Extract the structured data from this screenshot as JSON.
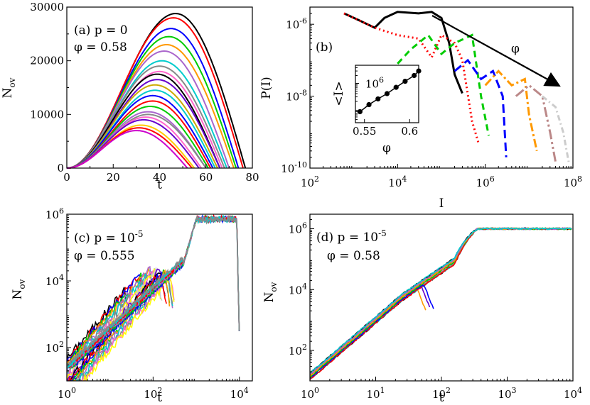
{
  "chart_data": [
    {
      "id": "a",
      "type": "line",
      "annotation": {
        "line1": "(a) p = 0",
        "line2": "φ = 0.58"
      },
      "xlabel": "t",
      "ylabel": {
        "main": "N",
        "sub": "ov"
      },
      "xlim": [
        0,
        80
      ],
      "ylim": [
        0,
        30000
      ],
      "xticks": [
        0,
        20,
        40,
        60,
        80
      ],
      "yticks": [
        0,
        10000,
        20000,
        30000
      ],
      "series": [
        {
          "color": "#000000",
          "peak_t": 47,
          "peak": 28800,
          "end": 77
        },
        {
          "color": "#ff0000",
          "peak_t": 46,
          "peak": 28000,
          "end": 76
        },
        {
          "color": "#0000ff",
          "peak_t": 45,
          "peak": 26000,
          "end": 74
        },
        {
          "color": "#00cc00",
          "peak_t": 44,
          "peak": 24500,
          "end": 73
        },
        {
          "color": "#ff9900",
          "peak_t": 43,
          "peak": 23000,
          "end": 72
        },
        {
          "color": "#aa66cc",
          "peak_t": 42,
          "peak": 21800,
          "end": 70
        },
        {
          "color": "#00cccc",
          "peak_t": 41,
          "peak": 20000,
          "end": 69
        },
        {
          "color": "#888888",
          "peak_t": 40,
          "peak": 19000,
          "end": 68
        },
        {
          "color": "#ff66cc",
          "peak_t": 40,
          "peak": 18000,
          "end": 67
        },
        {
          "color": "#000000",
          "peak_t": 39,
          "peak": 17500,
          "end": 66
        },
        {
          "color": "#6600cc",
          "peak_t": 39,
          "peak": 16500,
          "end": 66
        },
        {
          "color": "#ccaa00",
          "peak_t": 38,
          "peak": 15500,
          "end": 65
        },
        {
          "color": "#00cccc",
          "peak_t": 38,
          "peak": 14500,
          "end": 64
        },
        {
          "color": "#0000ff",
          "peak_t": 37,
          "peak": 13500,
          "end": 63
        },
        {
          "color": "#ff0000",
          "peak_t": 37,
          "peak": 12500,
          "end": 62
        },
        {
          "color": "#00cc00",
          "peak_t": 36,
          "peak": 11500,
          "end": 61
        },
        {
          "color": "#aa66cc",
          "peak_t": 35,
          "peak": 10500,
          "end": 60
        },
        {
          "color": "#888888",
          "peak_t": 35,
          "peak": 10000,
          "end": 60
        },
        {
          "color": "#ff66cc",
          "peak_t": 34,
          "peak": 9500,
          "end": 58
        },
        {
          "color": "#6600cc",
          "peak_t": 33,
          "peak": 9000,
          "end": 57
        },
        {
          "color": "#ffcc00",
          "peak_t": 32,
          "peak": 8000,
          "end": 55
        },
        {
          "color": "#ff0000",
          "peak_t": 31,
          "peak": 7500,
          "end": 54
        },
        {
          "color": "#cc00cc",
          "peak_t": 30,
          "peak": 7000,
          "end": 52
        }
      ]
    },
    {
      "id": "b",
      "type": "line",
      "annotation": {
        "line1": "(b)"
      },
      "arrow_label": "φ",
      "xlabel": "I",
      "ylabel": "P(I)",
      "xscale": "log",
      "yscale": "log",
      "xlim": [
        100,
        100000000
      ],
      "ylim": [
        1e-10,
        3e-06
      ],
      "xticks": [
        {
          "v": 100,
          "base": "10",
          "exp": "2"
        },
        {
          "v": 10000,
          "base": "10",
          "exp": "4"
        },
        {
          "v": 1000000,
          "base": "10",
          "exp": "6"
        },
        {
          "v": 100000000,
          "base": "10",
          "exp": "8"
        }
      ],
      "yticks": [
        {
          "v": 1e-10,
          "base": "10",
          "exp": "-10"
        },
        {
          "v": 1e-08,
          "base": "10",
          "exp": "-8"
        },
        {
          "v": 1e-06,
          "base": "10",
          "exp": "-6"
        }
      ],
      "series": [
        {
          "color": "#000000",
          "dash": "",
          "points": [
            [
              600,
              2e-06
            ],
            [
              1500,
              1.2e-06
            ],
            [
              3000,
              8e-07
            ],
            [
              5000,
              1.5e-06
            ],
            [
              10000,
              2.2e-06
            ],
            [
              30000,
              2e-06
            ],
            [
              60000,
              2.2e-06
            ],
            [
              100000,
              1.5e-06
            ],
            [
              150000,
              3e-07
            ],
            [
              200000,
              4e-08
            ],
            [
              300000,
              1.2e-08
            ]
          ]
        },
        {
          "color": "#ff0000",
          "dash": "2,4",
          "points": [
            [
              600,
              2e-06
            ],
            [
              3000,
              8e-07
            ],
            [
              10000,
              5e-07
            ],
            [
              30000,
              4e-07
            ],
            [
              60000,
              1.2e-07
            ],
            [
              100000,
              5e-07
            ],
            [
              200000,
              3e-07
            ],
            [
              300000,
              1e-07
            ],
            [
              500000,
              2e-09
            ],
            [
              700000,
              5e-10
            ]
          ]
        },
        {
          "color": "#00cc00",
          "dash": "9,6",
          "points": [
            [
              10000,
              8e-08
            ],
            [
              20000,
              2e-07
            ],
            [
              50000,
              5e-07
            ],
            [
              100000,
              1.5e-07
            ],
            [
              200000,
              3e-07
            ],
            [
              500000,
              5e-07
            ],
            [
              800000,
              1e-08
            ],
            [
              1200000,
              8e-10
            ]
          ]
        },
        {
          "color": "#0000ff",
          "dash": "12,6",
          "points": [
            [
              200000,
              5e-08
            ],
            [
              400000,
              1e-07
            ],
            [
              800000,
              3e-08
            ],
            [
              1500000,
              5e-08
            ],
            [
              2500000,
              1e-08
            ],
            [
              3000000,
              2e-10
            ]
          ]
        },
        {
          "color": "#ff9900",
          "dash": "12,4,3,4",
          "points": [
            [
              1000000,
              2e-08
            ],
            [
              2000000,
              5e-08
            ],
            [
              4000000,
              2e-08
            ],
            [
              8000000,
              3e-08
            ],
            [
              10000000,
              3e-09
            ],
            [
              15000000,
              3e-10
            ]
          ]
        },
        {
          "color": "#bb8888",
          "dash": "14,4,3,4,3,4",
          "points": [
            [
              5000000,
              1e-08
            ],
            [
              10000000,
              2e-08
            ],
            [
              20000000,
              1e-08
            ],
            [
              30000000,
              1e-09
            ],
            [
              40000000,
              1.5e-10
            ]
          ]
        },
        {
          "color": "#cccccc",
          "dash": "8,4,2,4",
          "points": [
            [
              20000000,
              1e-08
            ],
            [
              40000000,
              5e-09
            ],
            [
              60000000,
              1e-09
            ],
            [
              80000000,
              1.5e-10
            ]
          ]
        }
      ],
      "inset": {
        "xlabel": "φ",
        "ylabel": "<I>",
        "xlim": [
          0.54,
          0.61
        ],
        "yscale": "log",
        "ylim": [
          30000,
          5000000
        ],
        "xticks": [
          0.55,
          0.6
        ],
        "xtick_labels": [
          "0.55",
          "0.6"
        ],
        "yticks": [
          {
            "v": 1000000,
            "base": "10",
            "exp": "6"
          }
        ],
        "points": [
          [
            0.545,
            80000
          ],
          [
            0.555,
            150000
          ],
          [
            0.565,
            250000
          ],
          [
            0.575,
            400000
          ],
          [
            0.585,
            700000
          ],
          [
            0.595,
            1200000
          ],
          [
            0.605,
            2000000
          ],
          [
            0.61,
            3000000
          ]
        ]
      }
    },
    {
      "id": "c",
      "type": "line",
      "annotation": {
        "line1a": "(c) p = 10",
        "exp": "-5",
        "line2": "φ = 0.555"
      },
      "xlabel": "t",
      "ylabel": {
        "main": "N",
        "sub": "ov"
      },
      "xscale": "log",
      "yscale": "log",
      "xlim": [
        1,
        20000
      ],
      "ylim": [
        10,
        1000000
      ],
      "xticks": [
        {
          "v": 1,
          "base": "10",
          "exp": "0"
        },
        {
          "v": 100,
          "base": "10",
          "exp": "2"
        },
        {
          "v": 10000,
          "base": "10",
          "exp": "4"
        }
      ],
      "yticks": [
        {
          "v": 100,
          "base": "10",
          "exp": "2"
        },
        {
          "v": 10000,
          "base": "10",
          "exp": "4"
        },
        {
          "v": 1000000,
          "base": "10",
          "exp": "6"
        }
      ],
      "series_colors": [
        "#000000",
        "#ff0000",
        "#0000ff",
        "#00cc00",
        "#ff9900",
        "#aa66cc",
        "#00cccc",
        "#888888",
        "#ff66cc",
        "#ffff00",
        "#cccccc",
        "#6600cc"
      ]
    },
    {
      "id": "d",
      "type": "line",
      "annotation": {
        "line1a": "(d) p = 10",
        "exp": "-5",
        "line2": "φ = 0.58"
      },
      "xlabel": "t",
      "ylabel": {
        "main": "N",
        "sub": "ov"
      },
      "xscale": "log",
      "yscale": "log",
      "xlim": [
        1,
        10000
      ],
      "ylim": [
        10,
        3000000
      ],
      "xticks": [
        {
          "v": 1,
          "base": "10",
          "exp": "0"
        },
        {
          "v": 10,
          "base": "10",
          "exp": "1"
        },
        {
          "v": 100,
          "base": "10",
          "exp": "2"
        },
        {
          "v": 1000,
          "base": "10",
          "exp": "3"
        },
        {
          "v": 10000,
          "base": "10",
          "exp": "4"
        }
      ],
      "yticks": [
        {
          "v": 100,
          "base": "10",
          "exp": "2"
        },
        {
          "v": 10000,
          "base": "10",
          "exp": "4"
        },
        {
          "v": 1000000,
          "base": "10",
          "exp": "6"
        }
      ],
      "series_colors": [
        "#000000",
        "#ff0000",
        "#0000ff",
        "#00cc00",
        "#ff9900",
        "#aa66cc",
        "#00cccc",
        "#888888",
        "#ff66cc",
        "#6600cc",
        "#ccaa00"
      ]
    }
  ]
}
